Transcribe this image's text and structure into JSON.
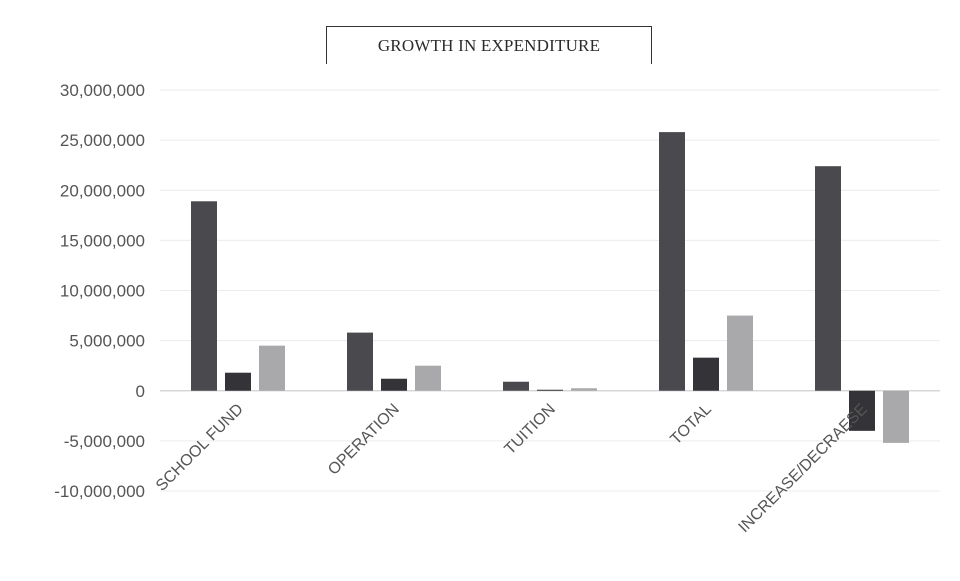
{
  "chart_data": {
    "type": "bar",
    "title": "GROWTH IN EXPENDITURE",
    "categories": [
      "SCHOOL FUND",
      "OPERATION",
      "TUITION",
      "TOTAL",
      "INCREASE/DECRAESE"
    ],
    "series": [
      {
        "values": [
          18900000,
          5800000,
          900000,
          25800000,
          22400000
        ]
      },
      {
        "values": [
          1800000,
          1200000,
          100000,
          3300000,
          -4000000
        ]
      },
      {
        "values": [
          4500000,
          2500000,
          250000,
          7500000,
          -5200000
        ]
      }
    ],
    "ylim": [
      -10000000,
      30000000
    ],
    "yticks": [
      30000000,
      25000000,
      20000000,
      15000000,
      10000000,
      5000000,
      0,
      -5000000,
      -10000000
    ],
    "ytick_labels": [
      "30,000,000",
      "25,000,000",
      "20,000,000",
      "15,000,000",
      "10,000,000",
      "5,000,000",
      "0",
      "-5,000,000",
      "-10,000,000"
    ],
    "colors": [
      "#4a4a4e",
      "#343438",
      "#a9a9ab"
    ],
    "grid": true,
    "legend": "none"
  }
}
